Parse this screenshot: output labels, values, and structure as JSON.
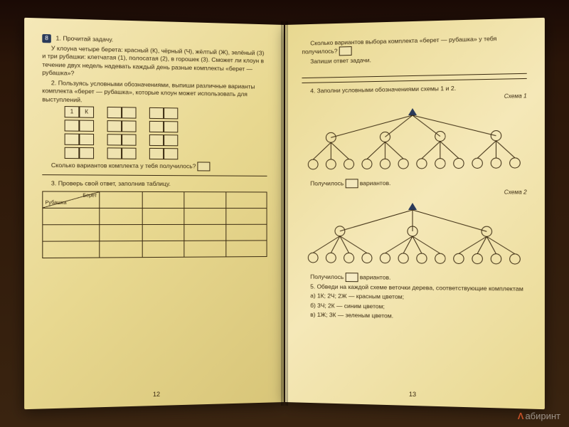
{
  "left": {
    "task_marker": "8",
    "p1_line1": "1. Прочитай задачу.",
    "p1_body": "У клоуна четыре берета: красный (К), чёрный (Ч), жёлтый (Ж), зелёный (З) и три рубашки: клетчатая (1), полосатая (2), в горошек (3). Сможет ли клоун в течение двух недель надевать каждый день разные комплекты «берет — рубашка»?",
    "p2": "2. Пользуясь условными обозначениями, выпиши различные варианты комплекта «берет — рубашка», которые клоун может использовать для выступлений.",
    "first_cell_a": "1",
    "first_cell_b": "К",
    "q_variants": "Сколько вариантов комплекта у тебя получилось?",
    "p3": "3. Проверь свой ответ, заполнив таблицу.",
    "table_top": "Берет",
    "table_left": "Рубашка",
    "page_num": "12"
  },
  "right": {
    "q1": "Сколько вариантов выбора комплекта «берет — рубашка» у тебя получилось?",
    "q2": "Запиши ответ задачи.",
    "p4": "4. Заполни условными обозначениями схемы 1 и 2.",
    "schema1": "Схема 1",
    "schema2": "Схема 2",
    "result_a": "Получилось",
    "result_b": "вариантов.",
    "p5": "5. Обведи на каждой схеме веточки дерева, соответствующие комплектам",
    "opt_a": "а) 1К; 2Ч; 2Ж — красным цветом;",
    "opt_b": "б) 3Ч; 2К — синим цветом;",
    "opt_c": "в) 1Ж; 3К — зеленым цветом.",
    "page_num": "13",
    "tree1": {
      "branches": 4,
      "leaves_per": 3
    },
    "tree2": {
      "branches": 3,
      "leaves_per": 4
    },
    "colors": {
      "stroke": "#3a2a10",
      "root_fill": "#2a3a5a"
    }
  },
  "watermark": "абиринт"
}
